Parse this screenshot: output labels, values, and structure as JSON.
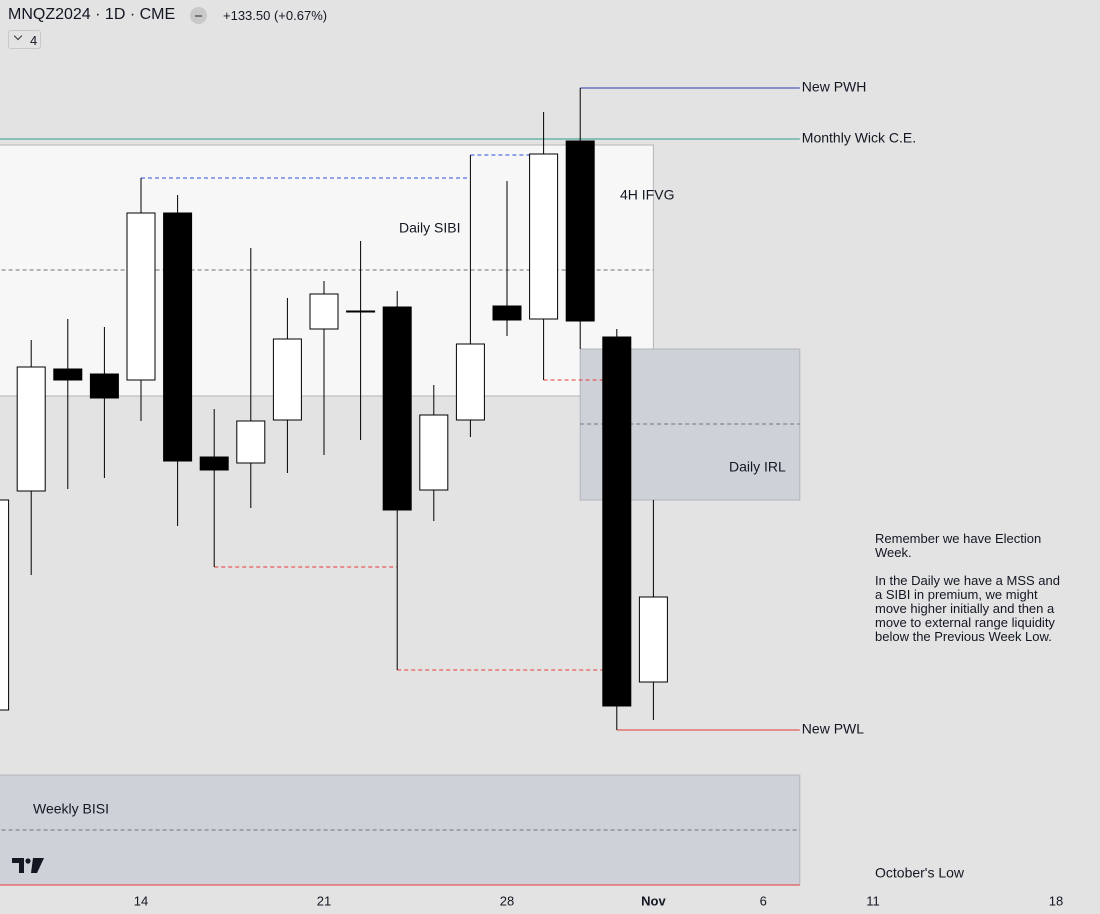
{
  "header": {
    "title": "MNQZ2024 · 1D · CME",
    "change": "+133.50 (+0.67%)",
    "indicators": "4"
  },
  "note": [
    "Remember we have Election Week.",
    "In the Daily we have a MSS and a SIBI in premium, we might move higher initially and then a move to external range liquidity below the Previous Week Low."
  ],
  "chart_data": {
    "type": "candlestick",
    "categories": [
      null,
      null,
      null,
      null,
      "14",
      null,
      null,
      null,
      null,
      "21",
      null,
      null,
      null,
      null,
      "28",
      null,
      null,
      null,
      "Nov",
      null,
      null,
      "6",
      null,
      null,
      "11",
      null,
      null,
      null,
      null,
      "18"
    ],
    "open": [
      20180,
      20399,
      20521,
      20516,
      20510,
      20677,
      20433,
      20427,
      20470,
      20561,
      20579,
      20583,
      20400,
      20470,
      20584,
      20571,
      20749,
      20553,
      20208,
      null,
      null,
      null,
      null,
      null,
      null,
      null,
      null,
      null,
      null,
      null
    ],
    "high": [
      20390,
      20550,
      20571,
      20563,
      20712,
      20695,
      20481,
      20642,
      20592,
      20609,
      20649,
      20599,
      20505,
      20735,
      20709,
      20778,
      20802,
      20561,
      20390,
      null,
      null,
      null,
      null,
      null,
      null,
      null,
      null,
      null,
      null,
      null
    ],
    "low": [
      20180,
      20315,
      20401,
      20412,
      20469,
      20364,
      20323,
      20382,
      20417,
      20435,
      20450,
      20220,
      20369,
      20453,
      20554,
      20510,
      20541,
      20160,
      20170,
      null,
      null,
      null,
      null,
      null,
      null,
      null,
      null,
      null,
      null,
      null
    ],
    "close": [
      20390,
      20523,
      20510,
      20492,
      20677,
      20429,
      20420,
      20469,
      20551,
      20596,
      20579,
      20380,
      20475,
      20546,
      20570,
      20736,
      20569,
      20184,
      20293,
      null,
      null,
      null,
      null,
      null,
      null,
      null,
      null,
      null,
      null,
      null
    ],
    "up_color": "#ffffff",
    "down_color": "#000000",
    "ylim": [
      20000,
      20890
    ],
    "zones": [
      {
        "label": "Daily SIBI",
        "top": 20745,
        "bottom": 20494,
        "mid": 20620,
        "x0": 0,
        "x1": 18,
        "color": "#f7f7f7"
      },
      {
        "label": "Daily IRL",
        "top": 20541,
        "bottom": 20390,
        "mid": 20466,
        "x0": 16,
        "x1": 22,
        "color": "#cfd1d9"
      },
      {
        "label": "Weekly BISI",
        "top": 20115,
        "bottom": 20005,
        "mid": 20060,
        "x0": 0,
        "x1": 22,
        "color": "#cfd1d9"
      }
    ],
    "levels": [
      {
        "label": "New PWH",
        "value": 20802,
        "x0": 16,
        "x1": 22,
        "color": "#2b3ea8"
      },
      {
        "label": "Monthly Wick C.E.",
        "value": 20751,
        "x0": 0,
        "x1": 22,
        "color": "#2e9e8e"
      },
      {
        "label": "New PWL",
        "value": 20160,
        "x0": 17,
        "x1": 22,
        "color": "#e53935"
      },
      {
        "label": "October's Low",
        "value": 20005,
        "x0": 0,
        "x1": 22,
        "color": "#e53935"
      }
    ],
    "liquidity_lines": [
      {
        "value": 20712,
        "x0": 4,
        "x1": 13,
        "color": "#2f4fd8"
      },
      {
        "value": 20735,
        "x0": 13,
        "x1": 15,
        "color": "#2f4fd8"
      },
      {
        "value": 20510,
        "x0": 15,
        "x1": 17,
        "color": "#e83a3a"
      },
      {
        "value": 20323,
        "x0": 6,
        "x1": 11,
        "color": "#e83a3a"
      },
      {
        "value": 20220,
        "x0": 11,
        "x1": 17,
        "color": "#e83a3a"
      }
    ],
    "annotations": [
      "4H IFVG"
    ]
  }
}
